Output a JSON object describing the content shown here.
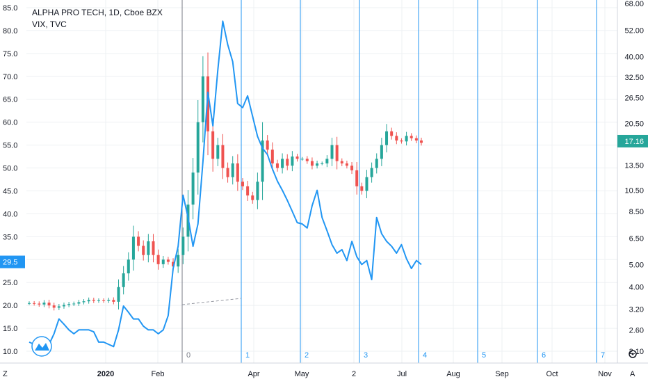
{
  "chart_data": {
    "type": "line",
    "title": "ALPHA PRO TECH, 1D, Cboe BZX",
    "secondary_title": "VIX, TVC",
    "x_tick_labels": [
      "2020",
      "Feb",
      "Apr",
      "May",
      "2",
      "Jul",
      "Aug",
      "Sep",
      "Oct",
      "Nov"
    ],
    "left_axis": {
      "ticks": [
        "85.0",
        "80.0",
        "75.0",
        "70.0",
        "65.0",
        "60.0",
        "55.0",
        "50.0",
        "45.0",
        "40.0",
        "35.0",
        "30.0",
        "25.0",
        "20.0",
        "15.0",
        "10.0"
      ],
      "range": [
        8,
        86
      ],
      "current_label": "29.5",
      "current_value": 29.5
    },
    "right_axis": {
      "ticks": [
        "68.00",
        "52.00",
        "40.00",
        "32.50",
        "26.50",
        "20.50",
        "17.16",
        "13.50",
        "10.50",
        "8.50",
        "6.50",
        "5.00",
        "4.00",
        "3.20",
        "2.60",
        "2.10"
      ],
      "current_label": "17.16",
      "current_value": 17.16
    },
    "vertical_markers": [
      "0",
      "1",
      "2",
      "3",
      "4",
      "5",
      "6",
      "7"
    ],
    "series": [
      {
        "name": "ALPHA PRO TECH",
        "kind": "candlestick",
        "values": [
          20.5,
          20.4,
          20.2,
          20.6,
          20.0,
          19.5,
          19.8,
          20.1,
          20.3,
          20.4,
          20.7,
          20.9,
          21.2,
          21.0,
          21.1,
          21.0,
          21.2,
          20.8,
          24.0,
          27.0,
          30.0,
          35.0,
          33.0,
          31.0,
          34.0,
          31.0,
          29.0,
          30.0,
          29.5,
          28.5,
          31.0,
          35.0,
          42.0,
          49.0,
          60.0,
          70.0,
          58.0,
          52.0,
          55.0,
          50.0,
          48.0,
          51.0,
          47.0,
          46.0,
          44.0,
          43.0,
          47.0,
          56.0,
          54.0,
          51.0,
          50.0,
          52.0,
          50.5,
          52.5,
          52.0,
          52.0,
          51.5,
          50.5,
          51.0,
          51.0,
          52.0,
          55.0,
          51.5,
          51.0,
          50.5,
          49.5,
          46.0,
          45.0,
          48.0,
          50.0,
          52.0,
          55.0,
          58.0,
          57.0,
          56.0,
          55.8,
          57.0,
          56.5,
          56.0,
          55.5
        ]
      },
      {
        "name": "VIX",
        "kind": "line",
        "color": "#2196f3",
        "values": [
          2.3,
          2.25,
          2.2,
          2.3,
          2.25,
          2.5,
          2.9,
          2.75,
          2.6,
          2.5,
          2.6,
          2.6,
          2.6,
          2.55,
          2.3,
          2.3,
          2.25,
          2.2,
          2.6,
          3.3,
          3.1,
          2.9,
          2.9,
          2.7,
          2.6,
          2.6,
          2.5,
          2.6,
          3.0,
          4.8,
          6.0,
          10.0,
          8.0,
          6.0,
          7.5,
          14.0,
          28.0,
          20.0,
          35.0,
          57.0,
          45.0,
          38.0,
          25.0,
          24.0,
          27.0,
          22.0,
          18.0,
          16.0,
          15.0,
          13.0,
          11.5,
          10.5,
          9.5,
          8.5,
          7.6,
          7.5,
          7.2,
          9.0,
          10.5,
          8.0,
          7.0,
          6.1,
          5.6,
          5.8,
          5.2,
          6.3,
          5.4,
          5.0,
          5.2,
          4.3,
          8.0,
          6.8,
          6.3,
          6.0,
          5.6,
          6.1,
          5.3,
          4.8,
          5.2,
          5.0
        ]
      }
    ],
    "grid": true
  },
  "toolbar": {
    "left_button": "Z",
    "right_button": "A",
    "gear_icon": "gear-icon",
    "logo_icon": "tradingview-logo-icon"
  }
}
